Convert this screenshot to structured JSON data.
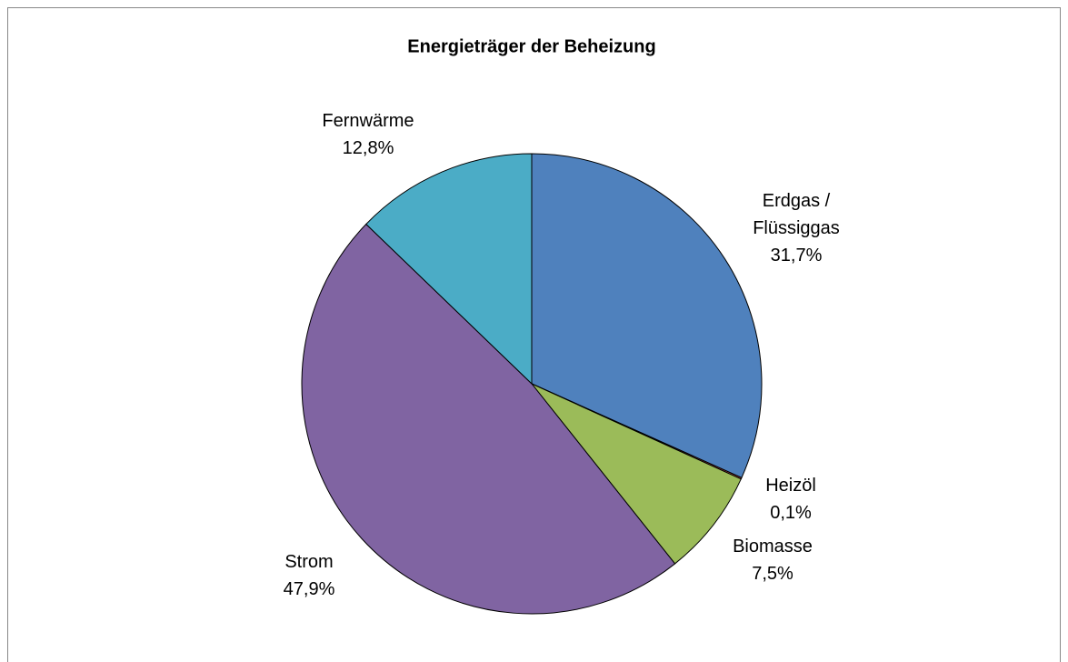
{
  "chart_data": {
    "type": "pie",
    "title": "Energieträger der Beheizung",
    "categories": [
      "Erdgas / Flüssiggas",
      "Heizöl",
      "Biomasse",
      "Strom",
      "Fernwärme"
    ],
    "values": [
      31.7,
      0.1,
      7.5,
      47.9,
      12.8
    ],
    "value_labels": [
      "31,7%",
      "0,1%",
      "7,5%",
      "47,9%",
      "12,8%"
    ],
    "colors": [
      "#4f81bd",
      "#c0504d",
      "#9bbb59",
      "#8064a2",
      "#4bacc6"
    ]
  }
}
